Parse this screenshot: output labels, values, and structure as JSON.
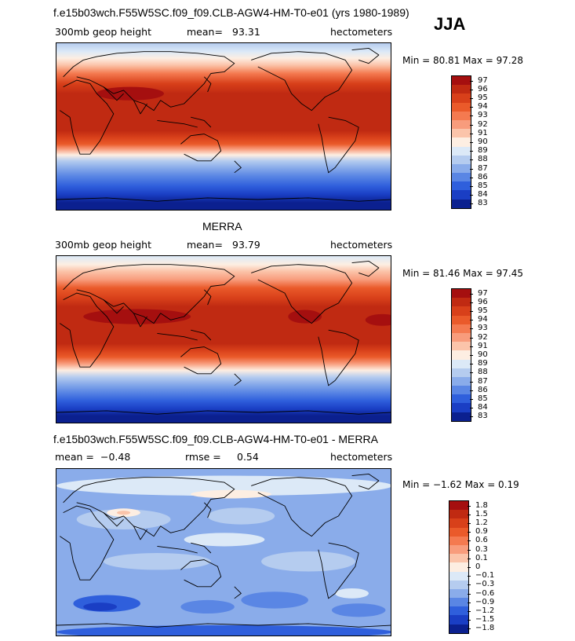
{
  "page_title": "f.e15b03wch.F55W5SC.f09_f09.CLB-AGW4-HM-T0-e01 (yrs 1980-1989)",
  "season": "JJA",
  "chart_data": [
    {
      "type": "heatmap",
      "title": "f.e15b03wch.F55W5SC.f09_f09.CLB-AGW4-HM-T0-e01 (yrs 1980-1989)",
      "variable": "300mb geop height",
      "mean_label": "mean=",
      "mean": "93.31",
      "units": "hectometers",
      "stats_text": "Min =  80.81 Max =  97.28",
      "min": 80.81,
      "max": 97.28,
      "levels": [
        "97",
        "96",
        "95",
        "94",
        "93",
        "92",
        "91",
        "90",
        "89",
        "88",
        "87",
        "86",
        "85",
        "84",
        "83"
      ],
      "colors": [
        "#a50f0f",
        "#c02a12",
        "#d8401a",
        "#ea5a2a",
        "#f47a50",
        "#f89c7c",
        "#fbc4aa",
        "#fdeee2",
        "#dce9f7",
        "#b5ccef",
        "#8aacea",
        "#5a86e4",
        "#2f5fdc",
        "#1a3ec4",
        "#0b208f"
      ]
    },
    {
      "type": "heatmap",
      "title": "MERRA",
      "variable": "300mb geop height",
      "mean_label": "mean=",
      "mean": "93.79",
      "units": "hectometers",
      "stats_text": "Min =  81.46 Max =  97.45",
      "min": 81.46,
      "max": 97.45,
      "levels": [
        "97",
        "96",
        "95",
        "94",
        "93",
        "92",
        "91",
        "90",
        "89",
        "88",
        "87",
        "86",
        "85",
        "84",
        "83"
      ],
      "colors": [
        "#a50f0f",
        "#c02a12",
        "#d8401a",
        "#ea5a2a",
        "#f47a50",
        "#f89c7c",
        "#fbc4aa",
        "#fdeee2",
        "#dce9f7",
        "#b5ccef",
        "#8aacea",
        "#5a86e4",
        "#2f5fdc",
        "#1a3ec4",
        "#0b208f"
      ]
    },
    {
      "type": "heatmap",
      "title": "f.e15b03wch.F55W5SC.f09_f09.CLB-AGW4-HM-T0-e01 - MERRA",
      "mean_label": "mean =",
      "mean": "−0.48",
      "rmse_label": "rmse =",
      "rmse": "0.54",
      "units": "hectometers",
      "stats_text": "Min =  −1.62 Max =    0.19",
      "min": -1.62,
      "max": 0.19,
      "levels": [
        "1.8",
        "1.5",
        "1.2",
        "0.9",
        "0.6",
        "0.3",
        "0.1",
        "0",
        "−0.1",
        "−0.3",
        "−0.6",
        "−0.9",
        "−1.2",
        "−1.5",
        "−1.8"
      ],
      "colors": [
        "#a50f0f",
        "#c02a12",
        "#d8401a",
        "#ea5a2a",
        "#f47a50",
        "#f89c7c",
        "#fbc4aa",
        "#fdeee2",
        "#dce9f7",
        "#b5ccef",
        "#8aacea",
        "#5a86e4",
        "#2f5fdc",
        "#1a3ec4",
        "#0b208f"
      ]
    }
  ]
}
